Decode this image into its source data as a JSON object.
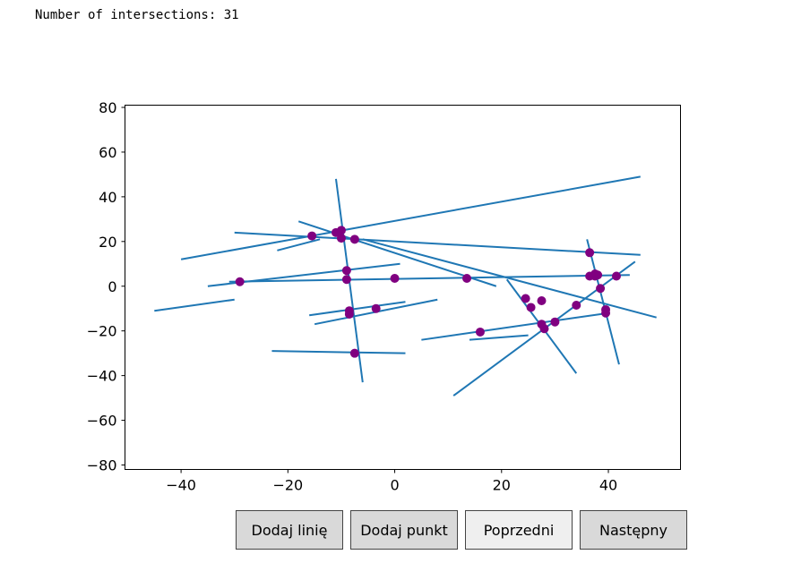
{
  "status_text": "Number of intersections: 31",
  "buttons": {
    "add_line": "Dodaj linię",
    "add_point": "Dodaj punkt",
    "previous": "Poprzedni",
    "next": "Następny"
  },
  "chart_data": {
    "type": "scatter",
    "xlim": [
      -50.5,
      53.5
    ],
    "ylim": [
      -82,
      81
    ],
    "x_ticks": [
      -40,
      -20,
      0,
      20,
      40
    ],
    "y_ticks": [
      -80,
      -60,
      -40,
      -20,
      0,
      20,
      40,
      60,
      80
    ],
    "x_tick_labels": [
      "−40",
      "−20",
      "0",
      "20",
      "40"
    ],
    "y_tick_labels": [
      "−80",
      "−60",
      "−40",
      "−20",
      "0",
      "20",
      "40",
      "60",
      "80"
    ],
    "grid": false,
    "line_color": "#1f77b4",
    "point_color": "#800080",
    "segments": [
      [
        [
          -40,
          12
        ],
        [
          46,
          49
        ]
      ],
      [
        [
          -30,
          24
        ],
        [
          46,
          14
        ]
      ],
      [
        [
          -45,
          -11
        ],
        [
          -30,
          -6
        ]
      ],
      [
        [
          -35,
          0
        ],
        [
          1,
          10
        ]
      ],
      [
        [
          -31,
          2
        ],
        [
          44,
          5
        ]
      ],
      [
        [
          -18,
          29
        ],
        [
          19,
          0
        ]
      ],
      [
        [
          -22,
          16
        ],
        [
          -14,
          21
        ]
      ],
      [
        [
          -11,
          48
        ],
        [
          -6,
          -43
        ]
      ],
      [
        [
          -16,
          -13
        ],
        [
          2,
          -7
        ]
      ],
      [
        [
          -15,
          -17
        ],
        [
          8,
          -6
        ]
      ],
      [
        [
          -23,
          -29
        ],
        [
          2,
          -30
        ]
      ],
      [
        [
          -6,
          21
        ],
        [
          49,
          -14
        ]
      ],
      [
        [
          21,
          3
        ],
        [
          34,
          -39
        ]
      ],
      [
        [
          11,
          -49
        ],
        [
          45,
          11
        ]
      ],
      [
        [
          5,
          -24
        ],
        [
          40,
          -12
        ]
      ],
      [
        [
          14,
          -24
        ],
        [
          25,
          -22
        ]
      ],
      [
        [
          36,
          21
        ],
        [
          42,
          -35
        ]
      ]
    ],
    "points": [
      [
        -29,
        2
      ],
      [
        -15.5,
        22.5
      ],
      [
        -11,
        24
      ],
      [
        -10,
        25
      ],
      [
        -10,
        21.5
      ],
      [
        -7.5,
        21
      ],
      [
        -9,
        7
      ],
      [
        -9,
        3
      ],
      [
        0,
        3.5
      ],
      [
        13.5,
        3.5
      ],
      [
        -8.5,
        -11
      ],
      [
        -8.5,
        -12.5
      ],
      [
        -3.5,
        -10
      ],
      [
        -7.5,
        -30
      ],
      [
        16,
        -20.5
      ],
      [
        24.5,
        -5.5
      ],
      [
        25.5,
        -9.5
      ],
      [
        27.5,
        -6.5
      ],
      [
        27.5,
        -17
      ],
      [
        28,
        -19
      ],
      [
        30,
        -16
      ],
      [
        34,
        -8.5
      ],
      [
        36.5,
        15
      ],
      [
        36.5,
        4.5
      ],
      [
        37.5,
        5.5
      ],
      [
        38,
        5
      ],
      [
        38.5,
        -1
      ],
      [
        39.5,
        -10.5
      ],
      [
        39.5,
        -12
      ],
      [
        41.5,
        4.5
      ],
      [
        37.5,
        4.5
      ]
    ]
  }
}
